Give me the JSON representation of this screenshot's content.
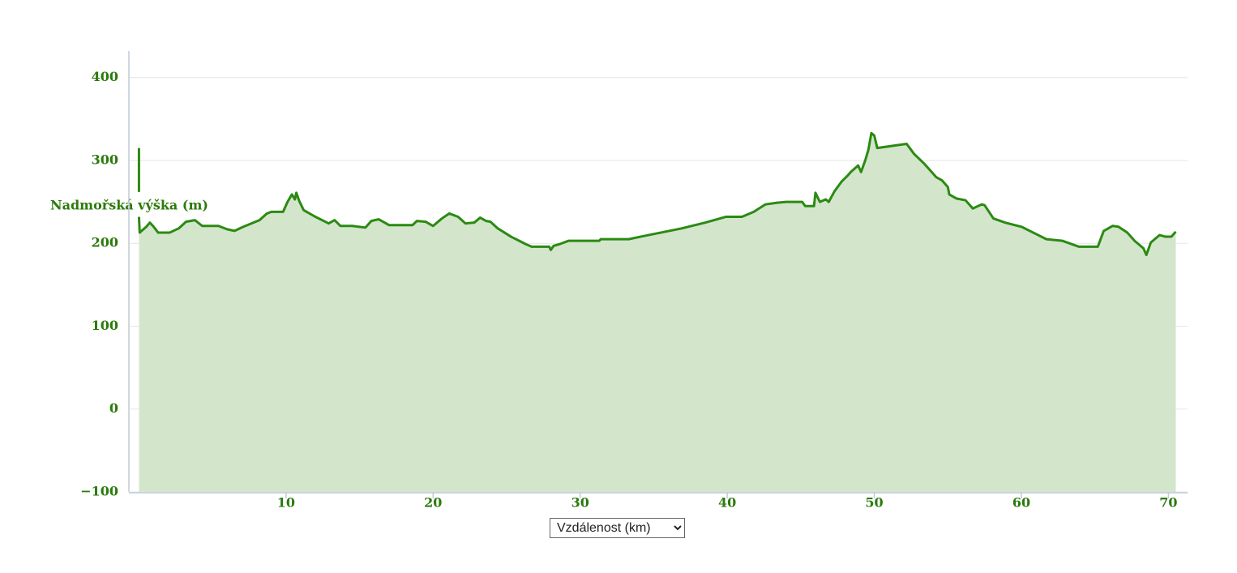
{
  "chart_data": {
    "type": "area",
    "y_label": "Nadmořská výška (m)",
    "x_label": "Vzdálenost (km)",
    "color": "#2b8a12",
    "fill_color": "#d3e6cc",
    "grid": true,
    "xlim": [
      -0.63,
      71.3
    ],
    "ylim": [
      -100,
      432
    ],
    "xticks": [
      10,
      20,
      30,
      40,
      50,
      60,
      70
    ],
    "yticks": [
      {
        "value": -100,
        "label": "−100"
      },
      0,
      100,
      200,
      300,
      400
    ],
    "x": [
      0,
      0,
      0,
      0,
      0.05,
      0.5,
      0.74,
      1.0,
      1.3,
      2.1,
      2.7,
      3.2,
      3.8,
      4.3,
      5.4,
      6.0,
      6.5,
      7.1,
      8.2,
      8.7,
      9.0,
      9.8,
      10.1,
      10.4,
      10.6,
      10.7,
      10.9,
      11.2,
      12.0,
      12.9,
      13.3,
      13.7,
      14.5,
      15.4,
      15.8,
      16.3,
      17.0,
      18.6,
      18.9,
      19.5,
      20.0,
      20.6,
      21.1,
      21.7,
      22.2,
      22.8,
      23.2,
      23.6,
      23.9,
      24.4,
      25.3,
      26.3,
      26.7,
      27.9,
      28.0,
      28.2,
      28.6,
      29.2,
      31.3,
      31.4,
      33.3,
      34.1,
      35.5,
      36.9,
      38.5,
      39.9,
      41.0,
      41.8,
      42.6,
      43.4,
      44.0,
      45.1,
      45.3,
      45.9,
      46.0,
      46.3,
      46.7,
      46.9,
      47.3,
      47.8,
      48.2,
      48.4,
      48.9,
      49.1,
      49.4,
      49.6,
      49.8,
      50.0,
      50.2,
      52.2,
      52.7,
      53.4,
      54.2,
      54.6,
      55.0,
      55.1,
      55.6,
      56.2,
      56.7,
      57.3,
      57.5,
      58.1,
      58.9,
      60.0,
      60.8,
      61.7,
      62.8,
      63.9,
      65.2,
      65.6,
      66.2,
      66.6,
      67.2,
      67.7,
      68.3,
      68.5,
      68.8,
      69.4,
      69.8,
      70.2,
      70.5
    ],
    "values": [
      315,
      262,
      null,
      232,
      213,
      220,
      225,
      220,
      213,
      213,
      218,
      226,
      228,
      221,
      221,
      217,
      215,
      220,
      228,
      236,
      238,
      238,
      250,
      259,
      253,
      261,
      251,
      240,
      232,
      224,
      228,
      221,
      221,
      219,
      227,
      229,
      222,
      222,
      227,
      226,
      221,
      230,
      236,
      232,
      224,
      225,
      231,
      227,
      226,
      218,
      208,
      199,
      196,
      196,
      192,
      197,
      199,
      203,
      203,
      205,
      205,
      208,
      213,
      218,
      225,
      232,
      232,
      238,
      247,
      249,
      250,
      250,
      245,
      245,
      261,
      250,
      253,
      250,
      263,
      275,
      282,
      286,
      294,
      286,
      301,
      313,
      333,
      330,
      315,
      320,
      308,
      296,
      280,
      276,
      268,
      259,
      254,
      252,
      242,
      247,
      246,
      230,
      225,
      220,
      213,
      205,
      203,
      196,
      196,
      215,
      221,
      220,
      213,
      203,
      194,
      186,
      201,
      210,
      208,
      208,
      214
    ]
  }
}
